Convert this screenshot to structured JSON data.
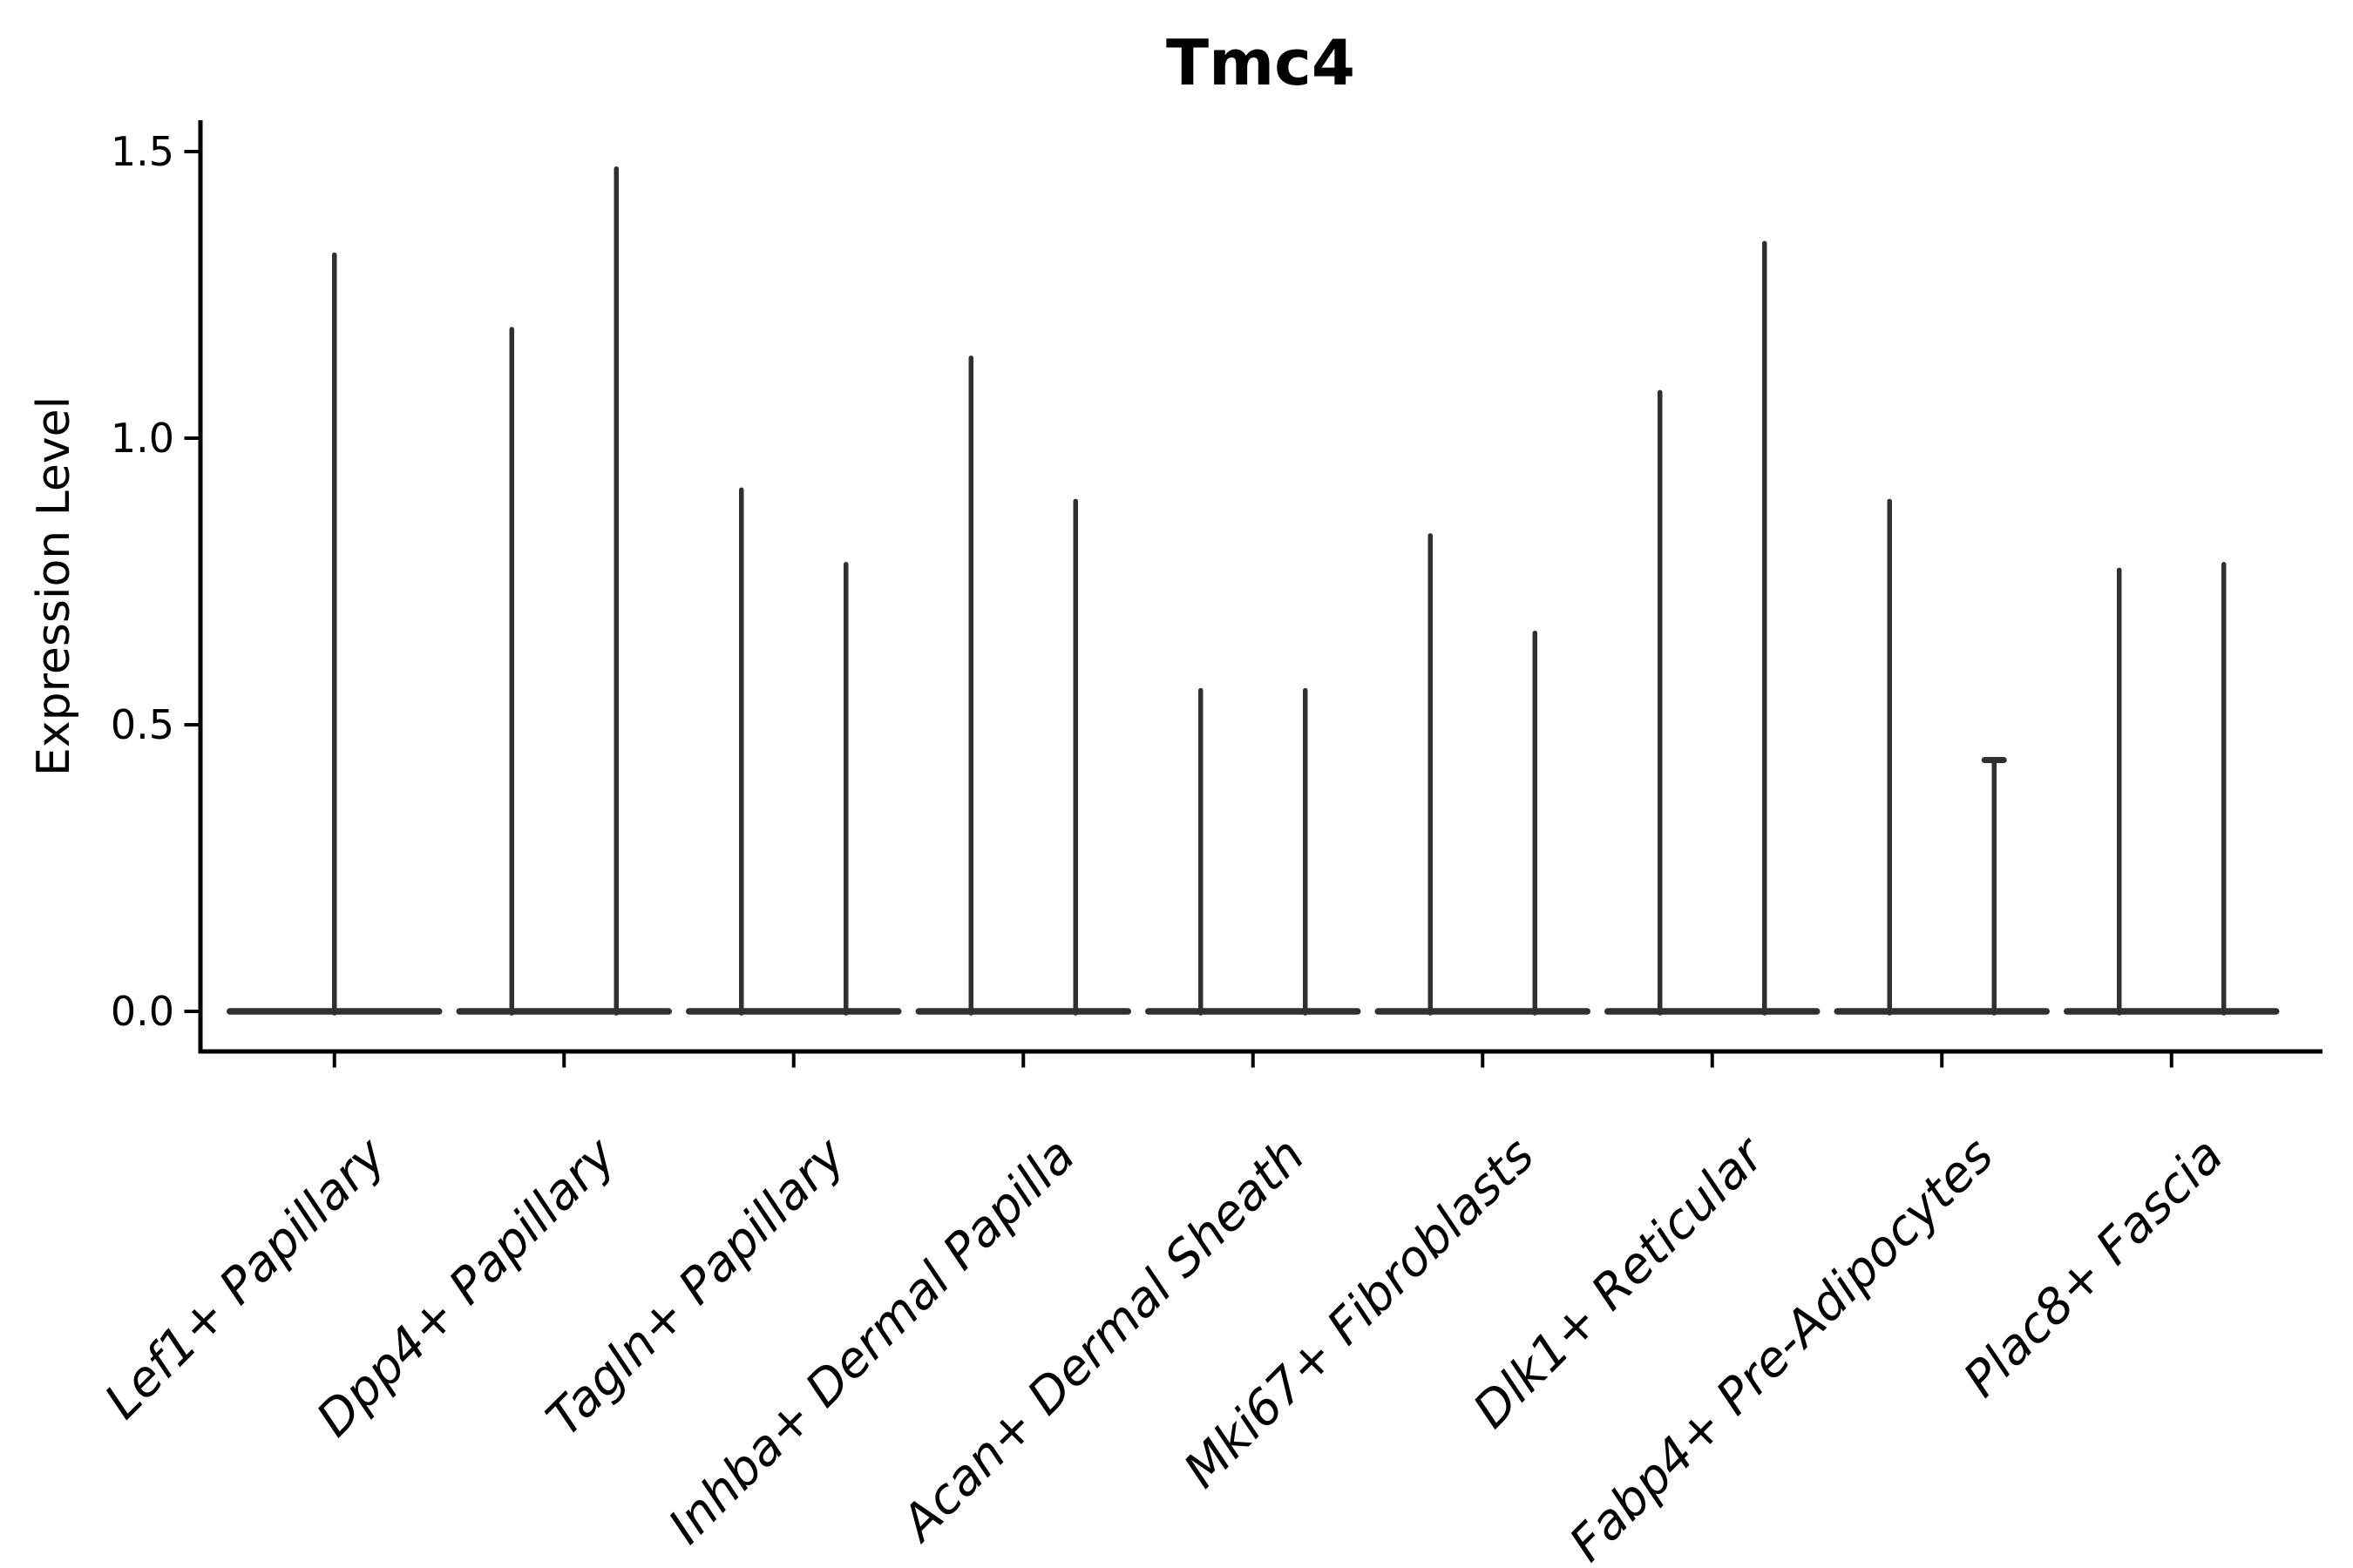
{
  "page": {
    "background": "#ffffff"
  },
  "chart_data": {
    "type": "violin",
    "title": "Tmc4",
    "ylabel": "Expression Level",
    "xlabel": "",
    "yticks": [
      0.0,
      0.5,
      1.0,
      1.5
    ],
    "ylim": [
      -0.07,
      1.55
    ],
    "grid": false,
    "legend": "none",
    "style": {
      "violin_style": "needle-thin",
      "line_color": "#303030",
      "axis_color": "#000000",
      "x_label_rotation": 45,
      "x_label_style": "italic",
      "spines": [
        "left",
        "bottom"
      ]
    },
    "categories": [
      "Lef1+ Papillary",
      "Dpp4+ Papillary",
      "Tagln+ Papillary",
      "Inhba+ Dermal Papilla",
      "Acan+ Dermal Sheath",
      "Mki67+ Fibroblasts",
      "Dlk1+ Reticular",
      "Fabp4+ Pre-Adipocytes",
      "Plac8+ Fascia"
    ],
    "groups": [
      {
        "category": "Lef1+ Papillary",
        "violins": [
          {
            "max": 1.32
          }
        ]
      },
      {
        "category": "Dpp4+ Papillary",
        "violins": [
          {
            "max": 1.19
          },
          {
            "max": 1.47
          }
        ]
      },
      {
        "category": "Tagln+ Papillary",
        "violins": [
          {
            "max": 0.91
          },
          {
            "max": 0.78
          }
        ]
      },
      {
        "category": "Inhba+ Dermal Papilla",
        "violins": [
          {
            "max": 1.14
          },
          {
            "max": 0.89
          }
        ]
      },
      {
        "category": "Acan+ Dermal Sheath",
        "violins": [
          {
            "max": 0.56
          },
          {
            "max": 0.56
          }
        ]
      },
      {
        "category": "Mki67+ Fibroblasts",
        "violins": [
          {
            "max": 0.83
          },
          {
            "max": 0.66
          }
        ]
      },
      {
        "category": "Dlk1+ Reticular",
        "violins": [
          {
            "max": 1.08
          },
          {
            "max": 1.34
          }
        ]
      },
      {
        "category": "Fabp4+ Pre-Adipocytes",
        "violins": [
          {
            "max": 0.89
          },
          {
            "max": 0.44,
            "tip_cap": true
          }
        ]
      },
      {
        "category": "Plac8+ Fascia",
        "violins": [
          {
            "max": 0.77
          },
          {
            "max": 0.78
          }
        ]
      }
    ]
  }
}
